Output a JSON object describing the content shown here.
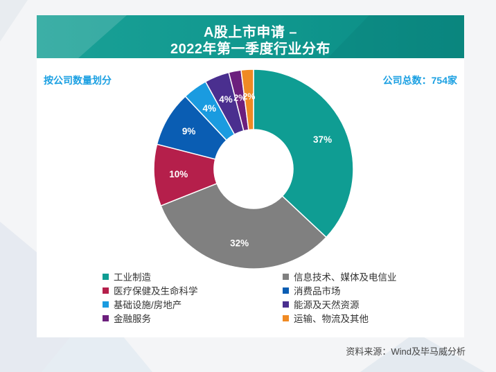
{
  "header": {
    "title_line1": "A股上市申请 –",
    "title_line2": "2022年第一季度行业分布"
  },
  "subtitle_left": "按公司数量划分",
  "subtitle_right": "公司总数：754家",
  "source": "资料来源：Wind及毕马威分析",
  "chart_data": {
    "type": "pie",
    "title": "A股上市申请 – 2022年第一季度行业分布",
    "total_label": "公司总数：754家",
    "slices": [
      {
        "name": "工业制造",
        "value": 37,
        "label": "37%",
        "color": "#0f9d93"
      },
      {
        "name": "信息技术、媒体及电信业",
        "value": 32,
        "label": "32%",
        "color": "#808080"
      },
      {
        "name": "医疗保健及生命科学",
        "value": 10,
        "label": "10%",
        "color": "#b51f4b"
      },
      {
        "name": "消费品市场",
        "value": 9,
        "label": "9%",
        "color": "#0a5db3"
      },
      {
        "name": "基础设施/房地产",
        "value": 4,
        "label": "4%",
        "color": "#1a9be0"
      },
      {
        "name": "能源及天然资源",
        "value": 4,
        "label": "4%",
        "color": "#4a2f8f"
      },
      {
        "name": "金融服务",
        "value": 2,
        "label": "2%",
        "color": "#6c1f7d"
      },
      {
        "name": "运输、物流及其他",
        "value": 2,
        "label": "2%",
        "color": "#f08a24"
      }
    ],
    "legend_order": [
      "工业制造",
      "信息技术、媒体及电信业",
      "医疗保健及生命科学",
      "消费品市场",
      "基础设施/房地产",
      "能源及天然资源",
      "金融服务",
      "运输、物流及其他"
    ]
  }
}
